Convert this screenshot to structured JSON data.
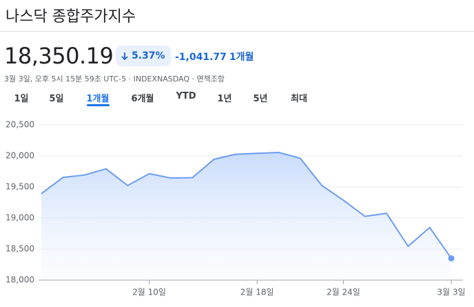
{
  "header": {
    "title": "나스닥 종합주가지수",
    "price": "18,350.19",
    "change_percent": "5.37%",
    "change": "-1,041.77",
    "period": "1개월",
    "timestamp": "3월 3일, 오후 5시 15분 59초 UTC-5 · INDEXNASDAQ · ",
    "disclaimer": "면책조항"
  },
  "tabs": {
    "labels": [
      "1일",
      "5일",
      "1개월",
      "6개월",
      "YTD",
      "1년",
      "5년",
      "최대"
    ],
    "selected": 2
  },
  "chart_data": {
    "type": "line",
    "color": "#6b9cf0",
    "categories": [
      null,
      null,
      null,
      null,
      null,
      "2월 10일",
      null,
      null,
      null,
      null,
      "2월 18일",
      null,
      null,
      null,
      "2월 24일",
      null,
      null,
      null,
      null,
      "3월 3일"
    ],
    "values": [
      19391.96,
      19654.02,
      19692.33,
      19791.99,
      19523.4,
      19714.27,
      19643.86,
      19649.95,
      19945.64,
      20026.77,
      20041.26,
      20056.25,
      19962.36,
      19524.01,
      19286.93,
      19026.39,
      19075.26,
      18544.42,
      18847.28,
      18350.19
    ],
    "ylim": [
      18000,
      20500
    ],
    "yticks": [
      {
        "value": 18000,
        "label": "18,000"
      },
      {
        "value": 18500,
        "label": "18,500"
      },
      {
        "value": 19000,
        "label": "19,000"
      },
      {
        "value": 19500,
        "label": "19,500"
      },
      {
        "value": 20000,
        "label": "20,000"
      },
      {
        "value": 20500,
        "label": "20,500"
      }
    ],
    "grid": true
  }
}
